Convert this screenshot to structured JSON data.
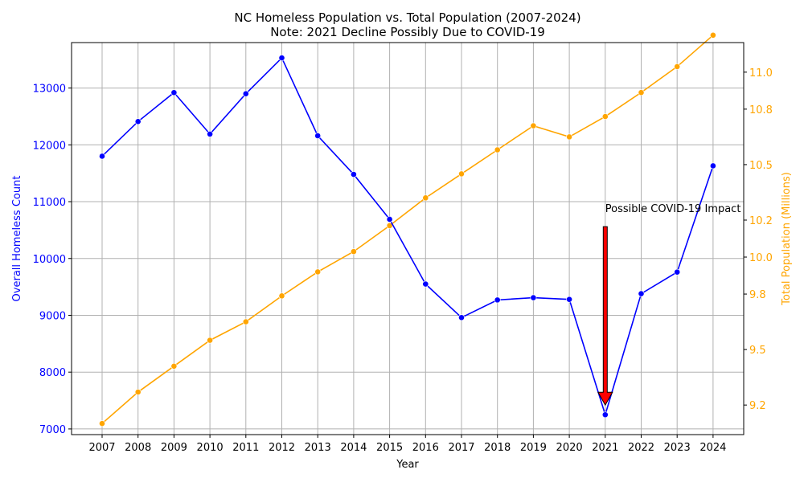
{
  "title_line1": "NC Homeless Population vs. Total Population (2007-2024)",
  "title_line2": "Note: 2021 Decline Possibly Due to COVID-19",
  "colors": {
    "homeless": "#0000ff",
    "population": "#ffa500",
    "arrow": "#ff0000",
    "grid": "#b0b0b0"
  },
  "chart_data": {
    "type": "line",
    "x": [
      2007,
      2008,
      2009,
      2010,
      2011,
      2012,
      2013,
      2014,
      2015,
      2016,
      2017,
      2018,
      2019,
      2020,
      2021,
      2022,
      2023,
      2024
    ],
    "xlabel": "Year",
    "grid": true,
    "series": [
      {
        "axis": "left",
        "ylabel": "Overall Homeless Count",
        "ylim": [
          6900,
          13800
        ],
        "yticks": [
          7000,
          8000,
          9000,
          10000,
          11000,
          12000,
          13000
        ],
        "color": "#0000ff",
        "values": [
          11800,
          12410,
          12920,
          12190,
          12900,
          13530,
          12160,
          11480,
          10690,
          9550,
          8960,
          9270,
          9310,
          9280,
          7250,
          9380,
          9760,
          11630
        ]
      },
      {
        "axis": "right",
        "ylabel": "Total Population (Millions)",
        "ylim": [
          9.04,
          11.16
        ],
        "yticks": [
          9.2,
          9.5,
          9.8,
          10.0,
          10.2,
          10.5,
          10.8,
          11.0
        ],
        "ytick_labels": [
          "9.2",
          "9.5",
          "9.8",
          "10.0",
          "10.2",
          "10.5",
          "10.8",
          "11.0"
        ],
        "color": "#ffa500",
        "values": [
          9.1,
          9.27,
          9.41,
          9.55,
          9.65,
          9.79,
          9.92,
          10.03,
          10.17,
          10.32,
          10.45,
          10.58,
          10.71,
          10.65,
          10.76,
          10.89,
          11.03,
          11.2
        ]
      }
    ],
    "annotation": {
      "text": "Possible COVID-19 Impact",
      "x": 2021,
      "arrow_from_y": 10560,
      "arrow_to_y": 7420
    }
  }
}
